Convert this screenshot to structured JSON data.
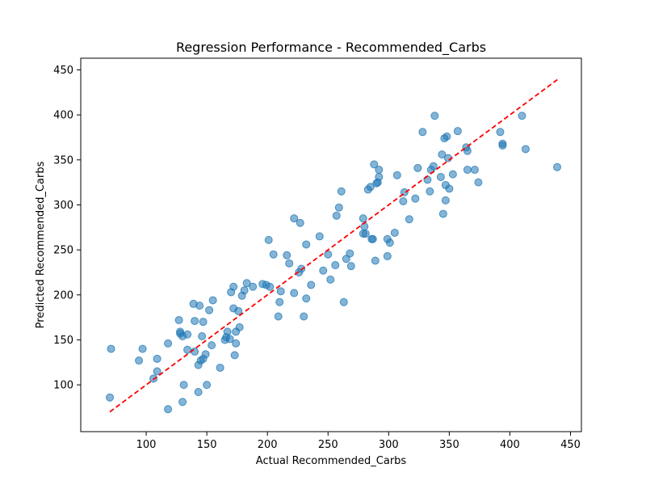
{
  "chart_data": {
    "type": "scatter",
    "title": "Regression Performance - Recommended_Carbs",
    "xlabel": "Actual Recommended_Carbs",
    "ylabel": "Predicted Recommended_Carbs",
    "xlim": [
      46,
      459
    ],
    "ylim": [
      48,
      463
    ],
    "xticks": [
      100,
      150,
      200,
      250,
      300,
      350,
      400,
      450
    ],
    "yticks": [
      100,
      150,
      200,
      250,
      300,
      350,
      400,
      450
    ],
    "grid": false,
    "point_color": "#1f77b4",
    "reference_line": {
      "style": "dashed",
      "color": "#ff0000",
      "from": [
        70,
        70
      ],
      "to": [
        440,
        440
      ]
    },
    "points": [
      [
        70,
        86
      ],
      [
        71,
        140
      ],
      [
        94,
        127
      ],
      [
        97,
        140
      ],
      [
        106,
        107
      ],
      [
        109,
        115
      ],
      [
        109,
        129
      ],
      [
        118,
        146
      ],
      [
        118,
        73
      ],
      [
        127,
        172
      ],
      [
        128,
        159
      ],
      [
        128,
        157
      ],
      [
        130,
        154
      ],
      [
        131,
        100
      ],
      [
        130,
        81
      ],
      [
        134,
        139
      ],
      [
        134,
        156
      ],
      [
        139,
        190
      ],
      [
        140,
        171
      ],
      [
        140,
        137
      ],
      [
        143,
        122
      ],
      [
        143,
        92
      ],
      [
        144,
        188
      ],
      [
        145,
        127
      ],
      [
        146,
        154
      ],
      [
        147,
        129
      ],
      [
        147,
        170
      ],
      [
        149,
        134
      ],
      [
        150,
        100
      ],
      [
        152,
        183
      ],
      [
        154,
        144
      ],
      [
        155,
        194
      ],
      [
        161,
        119
      ],
      [
        165,
        150
      ],
      [
        166,
        153
      ],
      [
        167,
        159
      ],
      [
        169,
        151
      ],
      [
        170,
        203
      ],
      [
        172,
        185
      ],
      [
        172,
        209
      ],
      [
        173,
        133
      ],
      [
        174,
        146
      ],
      [
        174,
        159
      ],
      [
        176,
        182
      ],
      [
        177,
        164
      ],
      [
        179,
        199
      ],
      [
        181,
        205
      ],
      [
        183,
        213
      ],
      [
        188,
        209
      ],
      [
        196,
        212
      ],
      [
        199,
        211
      ],
      [
        201,
        261
      ],
      [
        202,
        209
      ],
      [
        205,
        245
      ],
      [
        209,
        176
      ],
      [
        210,
        192
      ],
      [
        211,
        204
      ],
      [
        216,
        244
      ],
      [
        218,
        235
      ],
      [
        222,
        202
      ],
      [
        222,
        285
      ],
      [
        226,
        225
      ],
      [
        227,
        280
      ],
      [
        228,
        229
      ],
      [
        230,
        176
      ],
      [
        232,
        196
      ],
      [
        232,
        256
      ],
      [
        236,
        211
      ],
      [
        243,
        265
      ],
      [
        246,
        227
      ],
      [
        250,
        245
      ],
      [
        252,
        217
      ],
      [
        256,
        233
      ],
      [
        257,
        288
      ],
      [
        259,
        297
      ],
      [
        261,
        315
      ],
      [
        263,
        192
      ],
      [
        265,
        240
      ],
      [
        268,
        246
      ],
      [
        269,
        232
      ],
      [
        279,
        285
      ],
      [
        279,
        268
      ],
      [
        280,
        276
      ],
      [
        281,
        268
      ],
      [
        283,
        317
      ],
      [
        285,
        320
      ],
      [
        286,
        262
      ],
      [
        287,
        262
      ],
      [
        288,
        345
      ],
      [
        289,
        238
      ],
      [
        290,
        324
      ],
      [
        291,
        325
      ],
      [
        292,
        331
      ],
      [
        292,
        339
      ],
      [
        299,
        262
      ],
      [
        299,
        243
      ],
      [
        301,
        258
      ],
      [
        305,
        269
      ],
      [
        307,
        333
      ],
      [
        312,
        304
      ],
      [
        313,
        314
      ],
      [
        317,
        284
      ],
      [
        322,
        307
      ],
      [
        324,
        341
      ],
      [
        328,
        381
      ],
      [
        332,
        328
      ],
      [
        334,
        315
      ],
      [
        335,
        339
      ],
      [
        337,
        343
      ],
      [
        338,
        399
      ],
      [
        343,
        331
      ],
      [
        344,
        356
      ],
      [
        345,
        290
      ],
      [
        346,
        374
      ],
      [
        347,
        322
      ],
      [
        347,
        305
      ],
      [
        348,
        376
      ],
      [
        349,
        352
      ],
      [
        350,
        318
      ],
      [
        353,
        334
      ],
      [
        357,
        382
      ],
      [
        364,
        364
      ],
      [
        365,
        339
      ],
      [
        365,
        360
      ],
      [
        371,
        339
      ],
      [
        374,
        325
      ],
      [
        392,
        381
      ],
      [
        394,
        368
      ],
      [
        394,
        366
      ],
      [
        410,
        399
      ],
      [
        413,
        362
      ],
      [
        439,
        342
      ]
    ]
  }
}
